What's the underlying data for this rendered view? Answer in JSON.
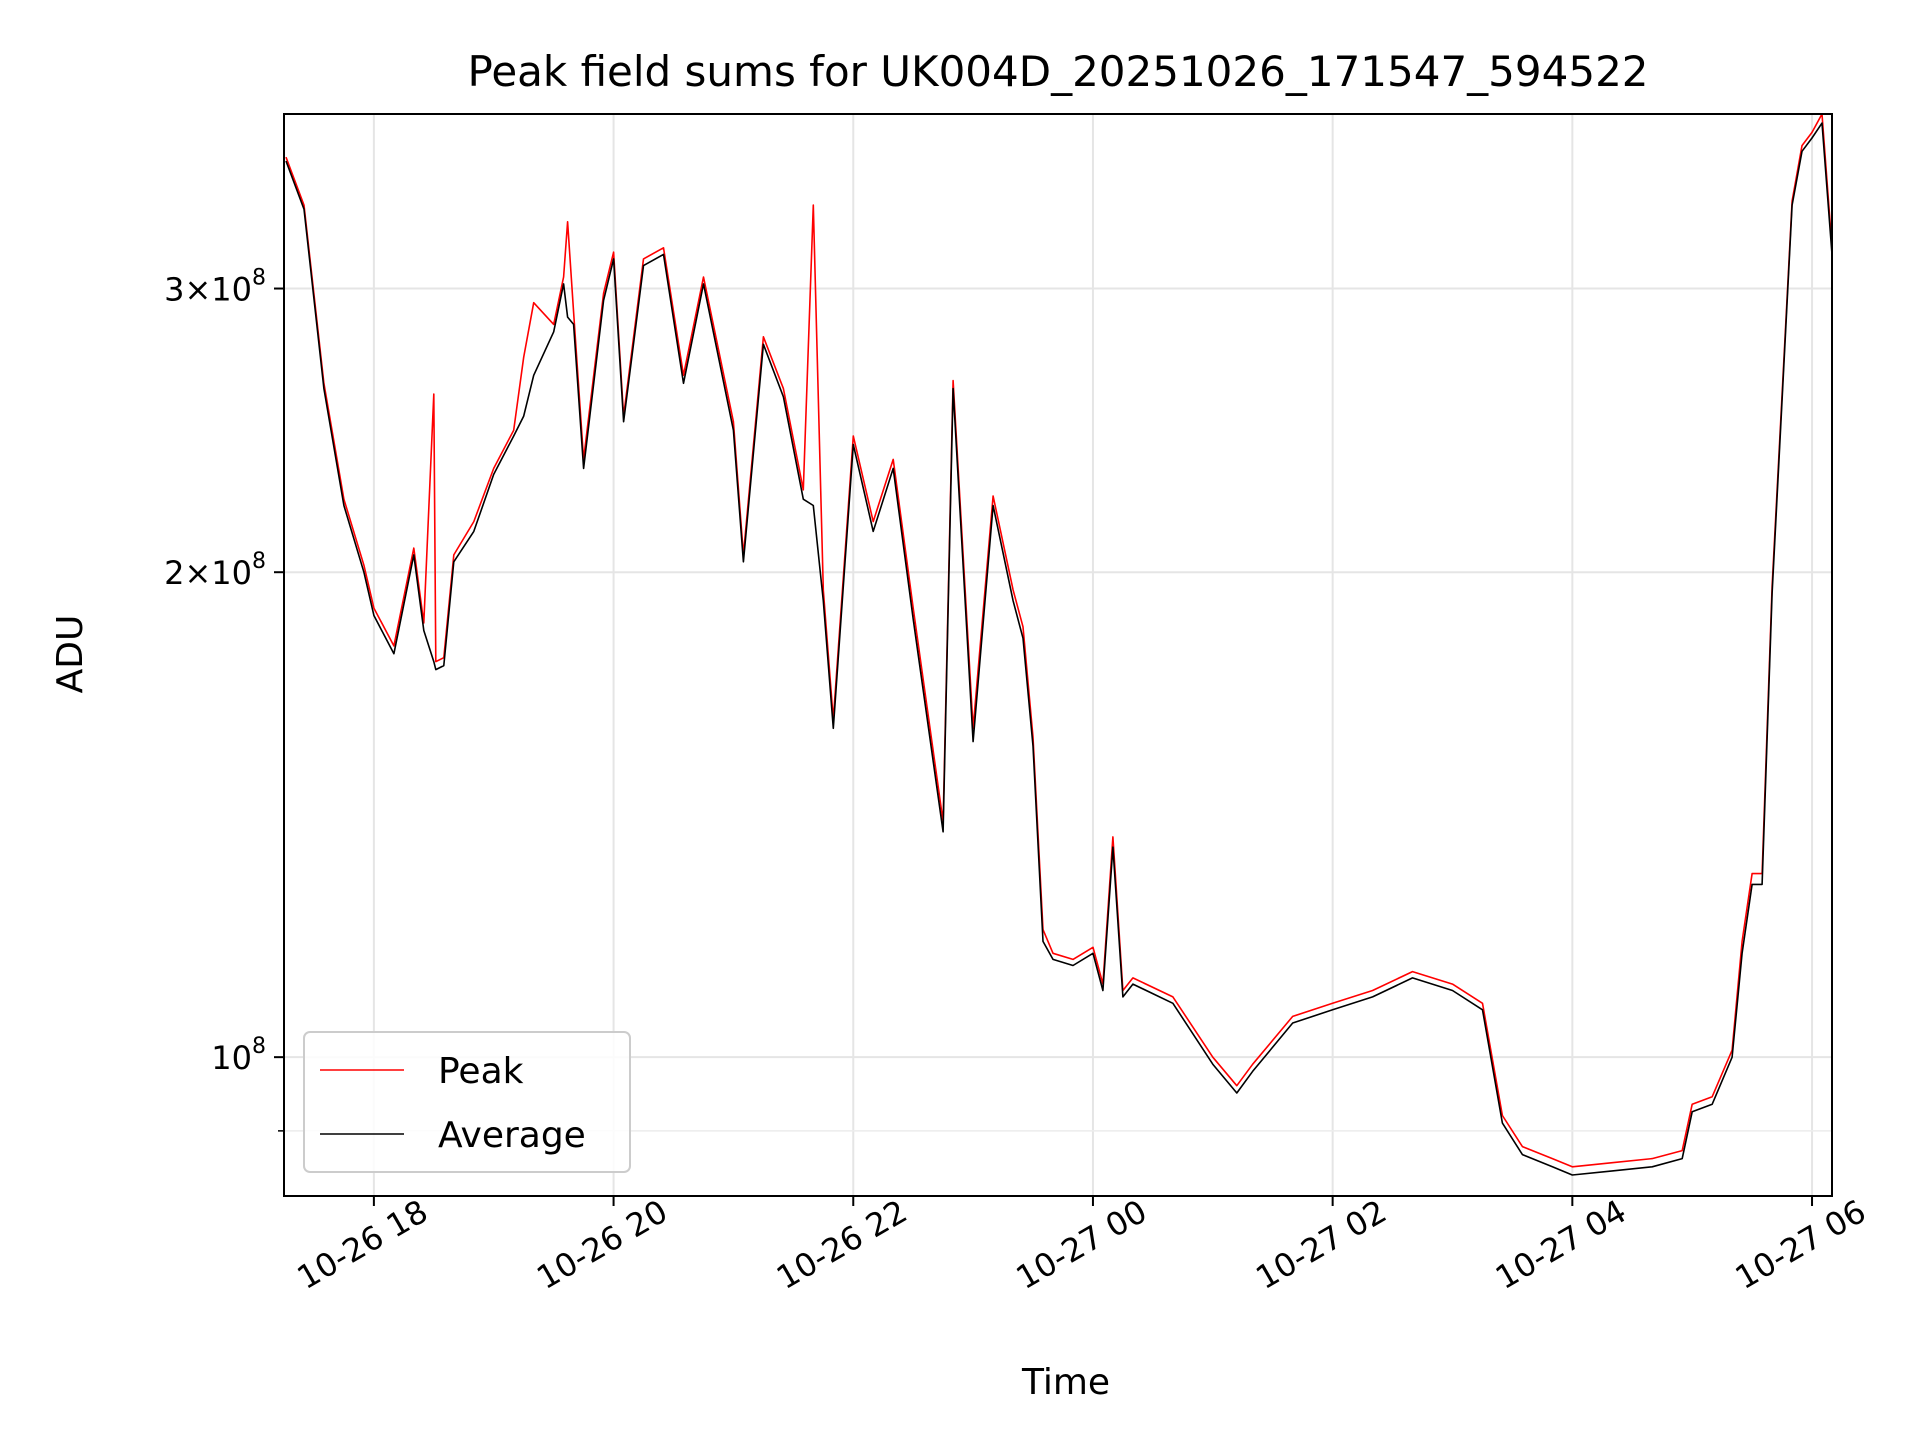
{
  "chart_data": {
    "type": "line",
    "title": "Peak field sums for UK004D_20251026_171547_594522",
    "xlabel": "Time",
    "ylabel": "ADU",
    "yscale": "log",
    "xlim": [
      "2025-10-26 17:15",
      "2025-10-27 06:10"
    ],
    "ylim": [
      82000000,
      385000000
    ],
    "grid": true,
    "legend_position": "lower-left",
    "x_ticks": [
      "10-26 18",
      "10-26 20",
      "10-26 22",
      "10-27 00",
      "10-27 02",
      "10-27 04",
      "10-27 06"
    ],
    "y_ticks": [
      {
        "value": 100000000,
        "mantissa": "",
        "exp": "8",
        "base": "10"
      },
      {
        "value": 200000000,
        "mantissa": "2",
        "exp": "8",
        "base": "10"
      },
      {
        "value": 300000000,
        "mantissa": "3",
        "exp": "8",
        "base": "10"
      }
    ],
    "y_minor_ticks": [
      90000000,
      400000000
    ],
    "series": [
      {
        "name": "Peak",
        "color": "#ff0000",
        "points": [
          [
            "2025-10-26 17:16",
            362000000
          ],
          [
            "2025-10-26 17:25",
            338000000
          ],
          [
            "2025-10-26 17:35",
            262000000
          ],
          [
            "2025-10-26 17:45",
            222000000
          ],
          [
            "2025-10-26 17:55",
            202000000
          ],
          [
            "2025-10-26 18:00",
            190000000
          ],
          [
            "2025-10-26 18:10",
            180000000
          ],
          [
            "2025-10-26 18:20",
            207000000
          ],
          [
            "2025-10-26 18:25",
            186000000
          ],
          [
            "2025-10-26 18:30",
            258000000
          ],
          [
            "2025-10-26 18:31",
            176000000
          ],
          [
            "2025-10-26 18:35",
            177000000
          ],
          [
            "2025-10-26 18:40",
            205000000
          ],
          [
            "2025-10-26 18:50",
            215000000
          ],
          [
            "2025-10-26 19:00",
            232000000
          ],
          [
            "2025-10-26 19:10",
            245000000
          ],
          [
            "2025-10-26 19:15",
            272000000
          ],
          [
            "2025-10-26 19:20",
            294000000
          ],
          [
            "2025-10-26 19:30",
            285000000
          ],
          [
            "2025-10-26 19:35",
            305000000
          ],
          [
            "2025-10-26 19:37",
            330000000
          ],
          [
            "2025-10-26 19:40",
            290000000
          ],
          [
            "2025-10-26 19:45",
            235000000
          ],
          [
            "2025-10-26 19:55",
            298000000
          ],
          [
            "2025-10-26 20:00",
            316000000
          ],
          [
            "2025-10-26 20:05",
            250000000
          ],
          [
            "2025-10-26 20:15",
            313000000
          ],
          [
            "2025-10-26 20:25",
            318000000
          ],
          [
            "2025-10-26 20:35",
            265000000
          ],
          [
            "2025-10-26 20:45",
            305000000
          ],
          [
            "2025-10-26 21:00",
            248000000
          ],
          [
            "2025-10-26 21:05",
            205000000
          ],
          [
            "2025-10-26 21:15",
            280000000
          ],
          [
            "2025-10-26 21:25",
            260000000
          ],
          [
            "2025-10-26 21:35",
            225000000
          ],
          [
            "2025-10-26 21:40",
            338000000
          ],
          [
            "2025-10-26 21:45",
            195000000
          ],
          [
            "2025-10-26 21:50",
            162000000
          ],
          [
            "2025-10-26 22:00",
            243000000
          ],
          [
            "2025-10-26 22:10",
            215000000
          ],
          [
            "2025-10-26 22:20",
            235000000
          ],
          [
            "2025-10-26 22:30",
            190000000
          ],
          [
            "2025-10-26 22:45",
            140000000
          ],
          [
            "2025-10-26 22:50",
            263000000
          ],
          [
            "2025-10-26 23:00",
            160000000
          ],
          [
            "2025-10-26 23:10",
            223000000
          ],
          [
            "2025-10-26 23:20",
            195000000
          ],
          [
            "2025-10-26 23:25",
            185000000
          ],
          [
            "2025-10-26 23:30",
            158000000
          ],
          [
            "2025-10-26 23:35",
            120000000
          ],
          [
            "2025-10-26 23:40",
            116000000
          ],
          [
            "2025-10-26 23:50",
            115000000
          ],
          [
            "2025-10-27 00:00",
            117000000
          ],
          [
            "2025-10-27 00:05",
            111000000
          ],
          [
            "2025-10-27 00:10",
            137000000
          ],
          [
            "2025-10-27 00:15",
            110000000
          ],
          [
            "2025-10-27 00:20",
            112000000
          ],
          [
            "2025-10-27 00:40",
            109000000
          ],
          [
            "2025-10-27 01:00",
            100000000
          ],
          [
            "2025-10-27 01:12",
            96000000
          ],
          [
            "2025-10-27 01:20",
            99000000
          ],
          [
            "2025-10-27 01:40",
            106000000
          ],
          [
            "2025-10-27 02:00",
            108000000
          ],
          [
            "2025-10-27 02:20",
            110000000
          ],
          [
            "2025-10-27 02:40",
            113000000
          ],
          [
            "2025-10-27 03:00",
            111000000
          ],
          [
            "2025-10-27 03:15",
            108000000
          ],
          [
            "2025-10-27 03:25",
            92000000
          ],
          [
            "2025-10-27 03:35",
            88000000
          ],
          [
            "2025-10-27 03:50",
            86500000
          ],
          [
            "2025-10-27 04:00",
            85500000
          ],
          [
            "2025-10-27 04:20",
            86000000
          ],
          [
            "2025-10-27 04:40",
            86500000
          ],
          [
            "2025-10-27 04:55",
            87500000
          ],
          [
            "2025-10-27 05:00",
            93500000
          ],
          [
            "2025-10-27 05:10",
            94500000
          ],
          [
            "2025-10-27 05:20",
            101000000
          ],
          [
            "2025-10-27 05:25",
            118000000
          ],
          [
            "2025-10-27 05:30",
            130000000
          ],
          [
            "2025-10-27 05:35",
            130000000
          ],
          [
            "2025-10-27 05:40",
            196000000
          ],
          [
            "2025-10-27 05:45",
            258000000
          ],
          [
            "2025-10-27 05:50",
            340000000
          ],
          [
            "2025-10-27 05:55",
            368000000
          ],
          [
            "2025-10-27 06:00",
            375000000
          ],
          [
            "2025-10-27 06:05",
            385000000
          ],
          [
            "2025-10-27 06:10",
            318000000
          ]
        ]
      },
      {
        "name": "Average",
        "color": "#000000",
        "points": [
          [
            "2025-10-26 17:16",
            360000000
          ],
          [
            "2025-10-26 17:25",
            336000000
          ],
          [
            "2025-10-26 17:35",
            260000000
          ],
          [
            "2025-10-26 17:45",
            220000000
          ],
          [
            "2025-10-26 17:55",
            200000000
          ],
          [
            "2025-10-26 18:00",
            188000000
          ],
          [
            "2025-10-26 18:10",
            178000000
          ],
          [
            "2025-10-26 18:20",
            205000000
          ],
          [
            "2025-10-26 18:25",
            184000000
          ],
          [
            "2025-10-26 18:30",
            176000000
          ],
          [
            "2025-10-26 18:31",
            174000000
          ],
          [
            "2025-10-26 18:35",
            175000000
          ],
          [
            "2025-10-26 18:40",
            203000000
          ],
          [
            "2025-10-26 18:50",
            212000000
          ],
          [
            "2025-10-26 19:00",
            230000000
          ],
          [
            "2025-10-26 19:10",
            243000000
          ],
          [
            "2025-10-26 19:15",
            250000000
          ],
          [
            "2025-10-26 19:20",
            265000000
          ],
          [
            "2025-10-26 19:30",
            282000000
          ],
          [
            "2025-10-26 19:35",
            302000000
          ],
          [
            "2025-10-26 19:37",
            288000000
          ],
          [
            "2025-10-26 19:40",
            285000000
          ],
          [
            "2025-10-26 19:45",
            232000000
          ],
          [
            "2025-10-26 19:55",
            295000000
          ],
          [
            "2025-10-26 20:00",
            313000000
          ],
          [
            "2025-10-26 20:05",
            248000000
          ],
          [
            "2025-10-26 20:15",
            310000000
          ],
          [
            "2025-10-26 20:25",
            315000000
          ],
          [
            "2025-10-26 20:35",
            262000000
          ],
          [
            "2025-10-26 20:45",
            302000000
          ],
          [
            "2025-10-26 21:00",
            245000000
          ],
          [
            "2025-10-26 21:05",
            203000000
          ],
          [
            "2025-10-26 21:15",
            277000000
          ],
          [
            "2025-10-26 21:25",
            257000000
          ],
          [
            "2025-10-26 21:35",
            222000000
          ],
          [
            "2025-10-26 21:40",
            220000000
          ],
          [
            "2025-10-26 21:45",
            192000000
          ],
          [
            "2025-10-26 21:50",
            160000000
          ],
          [
            "2025-10-26 22:00",
            240000000
          ],
          [
            "2025-10-26 22:10",
            212000000
          ],
          [
            "2025-10-26 22:20",
            232000000
          ],
          [
            "2025-10-26 22:30",
            187000000
          ],
          [
            "2025-10-26 22:45",
            138000000
          ],
          [
            "2025-10-26 22:50",
            260000000
          ],
          [
            "2025-10-26 23:00",
            157000000
          ],
          [
            "2025-10-26 23:10",
            220000000
          ],
          [
            "2025-10-26 23:20",
            192000000
          ],
          [
            "2025-10-26 23:25",
            182000000
          ],
          [
            "2025-10-26 23:30",
            156000000
          ],
          [
            "2025-10-26 23:35",
            118000000
          ],
          [
            "2025-10-26 23:40",
            115000000
          ],
          [
            "2025-10-26 23:50",
            114000000
          ],
          [
            "2025-10-27 00:00",
            116000000
          ],
          [
            "2025-10-27 00:05",
            110000000
          ],
          [
            "2025-10-27 00:10",
            135000000
          ],
          [
            "2025-10-27 00:15",
            109000000
          ],
          [
            "2025-10-27 00:20",
            111000000
          ],
          [
            "2025-10-27 00:40",
            108000000
          ],
          [
            "2025-10-27 01:00",
            99000000
          ],
          [
            "2025-10-27 01:12",
            95000000
          ],
          [
            "2025-10-27 01:20",
            98000000
          ],
          [
            "2025-10-27 01:40",
            105000000
          ],
          [
            "2025-10-27 02:00",
            107000000
          ],
          [
            "2025-10-27 02:20",
            109000000
          ],
          [
            "2025-10-27 02:40",
            112000000
          ],
          [
            "2025-10-27 03:00",
            110000000
          ],
          [
            "2025-10-27 03:15",
            107000000
          ],
          [
            "2025-10-27 03:25",
            91000000
          ],
          [
            "2025-10-27 03:35",
            87000000
          ],
          [
            "2025-10-27 03:50",
            85500000
          ],
          [
            "2025-10-27 04:00",
            84500000
          ],
          [
            "2025-10-27 04:20",
            85000000
          ],
          [
            "2025-10-27 04:40",
            85500000
          ],
          [
            "2025-10-27 04:55",
            86500000
          ],
          [
            "2025-10-27 05:00",
            92500000
          ],
          [
            "2025-10-27 05:10",
            93500000
          ],
          [
            "2025-10-27 05:20",
            100000000
          ],
          [
            "2025-10-27 05:25",
            116000000
          ],
          [
            "2025-10-27 05:30",
            128000000
          ],
          [
            "2025-10-27 05:35",
            128000000
          ],
          [
            "2025-10-27 05:40",
            194000000
          ],
          [
            "2025-10-27 05:45",
            256000000
          ],
          [
            "2025-10-27 05:50",
            338000000
          ],
          [
            "2025-10-27 05:55",
            365000000
          ],
          [
            "2025-10-27 06:00",
            372000000
          ],
          [
            "2025-10-27 06:05",
            380000000
          ],
          [
            "2025-10-27 06:10",
            315000000
          ]
        ]
      }
    ]
  }
}
